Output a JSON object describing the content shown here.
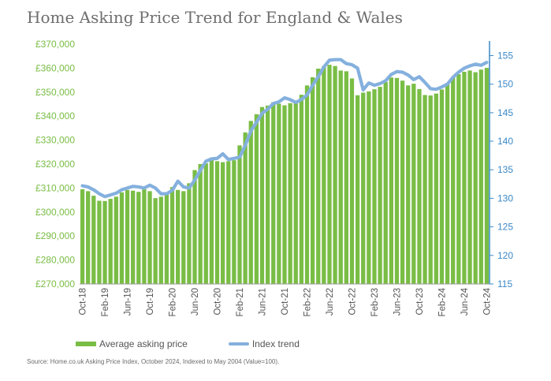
{
  "title": "Home Asking Price Trend for England & Wales",
  "source": "Source: Home.co.uk Asking Price Index, October 2024, Indexed to May 2004 (Value=100).",
  "colors": {
    "bar": "#79bd45",
    "line": "#84b0de",
    "right_axis": "#3a88c8",
    "left_axis_text": "#79bd45"
  },
  "legend": {
    "bar_label": "Average asking price",
    "line_label": "Index trend",
    "placement": "bottom"
  },
  "chart_data": {
    "type": "bar+line",
    "grid": false,
    "x": [
      "Oct-18",
      "Nov-18",
      "Dec-18",
      "Jan-19",
      "Feb-19",
      "Mar-19",
      "Apr-19",
      "May-19",
      "Jun-19",
      "Jul-19",
      "Aug-19",
      "Sep-19",
      "Oct-19",
      "Nov-19",
      "Dec-19",
      "Jan-20",
      "Feb-20",
      "Mar-20",
      "Apr-20",
      "May-20",
      "Jun-20",
      "Jul-20",
      "Aug-20",
      "Sep-20",
      "Oct-20",
      "Nov-20",
      "Dec-20",
      "Jan-21",
      "Feb-21",
      "Mar-21",
      "Apr-21",
      "May-21",
      "Jun-21",
      "Jul-21",
      "Aug-21",
      "Sep-21",
      "Oct-21",
      "Nov-21",
      "Dec-21",
      "Jan-22",
      "Feb-22",
      "Mar-22",
      "Apr-22",
      "May-22",
      "Jun-22",
      "Jul-22",
      "Aug-22",
      "Sep-22",
      "Oct-22",
      "Nov-22",
      "Dec-22",
      "Jan-23",
      "Feb-23",
      "Mar-23",
      "Apr-23",
      "May-23",
      "Jun-23",
      "Jul-23",
      "Aug-23",
      "Sep-23",
      "Oct-23",
      "Nov-23",
      "Dec-23",
      "Jan-24",
      "Feb-24",
      "Mar-24",
      "Apr-24",
      "May-24",
      "Jun-24",
      "Jul-24",
      "Aug-24",
      "Sep-24",
      "Oct-24"
    ],
    "x_tick_labels": [
      "Oct-18",
      "Feb-19",
      "Jun-19",
      "Oct-19",
      "Feb-20",
      "Jun-20",
      "Oct-20",
      "Feb-21",
      "Jun-21",
      "Oct-21",
      "Feb-22",
      "Jun-22",
      "Oct-22",
      "Feb-23",
      "Jun-23",
      "Oct-23",
      "Feb-24",
      "Jun-24",
      "Oct-24"
    ],
    "y_left": {
      "ylim": [
        270000,
        370000
      ],
      "tick_labels": [
        "£270,000",
        "£280,000",
        "£290,000",
        "£300,000",
        "£310,000",
        "£320,000",
        "£330,000",
        "£340,000",
        "£350,000",
        "£360,000",
        "£370,000"
      ]
    },
    "y_right": {
      "ylim": [
        115,
        157
      ],
      "tick_labels": [
        "115",
        "120",
        "125",
        "130",
        "135",
        "140",
        "145",
        "150",
        "155"
      ]
    },
    "series": [
      {
        "name": "Average asking price",
        "type": "bar",
        "axis": "left",
        "values": [
          309500,
          308700,
          306800,
          304700,
          304600,
          305500,
          306400,
          308200,
          309200,
          308900,
          308400,
          309500,
          308700,
          305800,
          306400,
          307800,
          310400,
          309200,
          308700,
          312000,
          317500,
          320000,
          320300,
          322700,
          321200,
          320800,
          321200,
          321600,
          327800,
          333200,
          338000,
          340800,
          343800,
          344400,
          345800,
          345200,
          344500,
          345400,
          346200,
          348900,
          352800,
          356200,
          359800,
          360800,
          361400,
          360900,
          359000,
          358700,
          355700,
          348700,
          349800,
          350300,
          351200,
          352200,
          354200,
          356100,
          355900,
          354800,
          352800,
          353500,
          351300,
          348800,
          348600,
          349400,
          351100,
          353300,
          356100,
          357500,
          358500,
          359000,
          358300,
          359400,
          360100
        ]
      },
      {
        "name": "Index trend",
        "type": "line",
        "axis": "right",
        "values": [
          132.2,
          132.0,
          131.5,
          130.8,
          130.3,
          130.6,
          130.9,
          131.5,
          131.8,
          132.1,
          132.0,
          131.8,
          132.3,
          131.8,
          130.8,
          130.8,
          131.4,
          133.0,
          132.0,
          131.8,
          133.2,
          134.9,
          136.5,
          136.9,
          137.0,
          137.8,
          136.8,
          137.0,
          137.2,
          139.3,
          141.8,
          143.3,
          144.9,
          145.6,
          146.6,
          146.9,
          147.6,
          147.3,
          146.8,
          147.3,
          148.1,
          149.8,
          151.3,
          153.0,
          154.2,
          154.3,
          154.3,
          153.6,
          153.4,
          152.8,
          149.0,
          150.2,
          149.8,
          150.1,
          150.6,
          151.7,
          152.2,
          152.1,
          151.6,
          150.8,
          151.3,
          150.3,
          149.2,
          149.1,
          149.5,
          150.0,
          151.2,
          152.1,
          152.8,
          153.2,
          153.5,
          153.3,
          153.8
        ]
      }
    ]
  }
}
